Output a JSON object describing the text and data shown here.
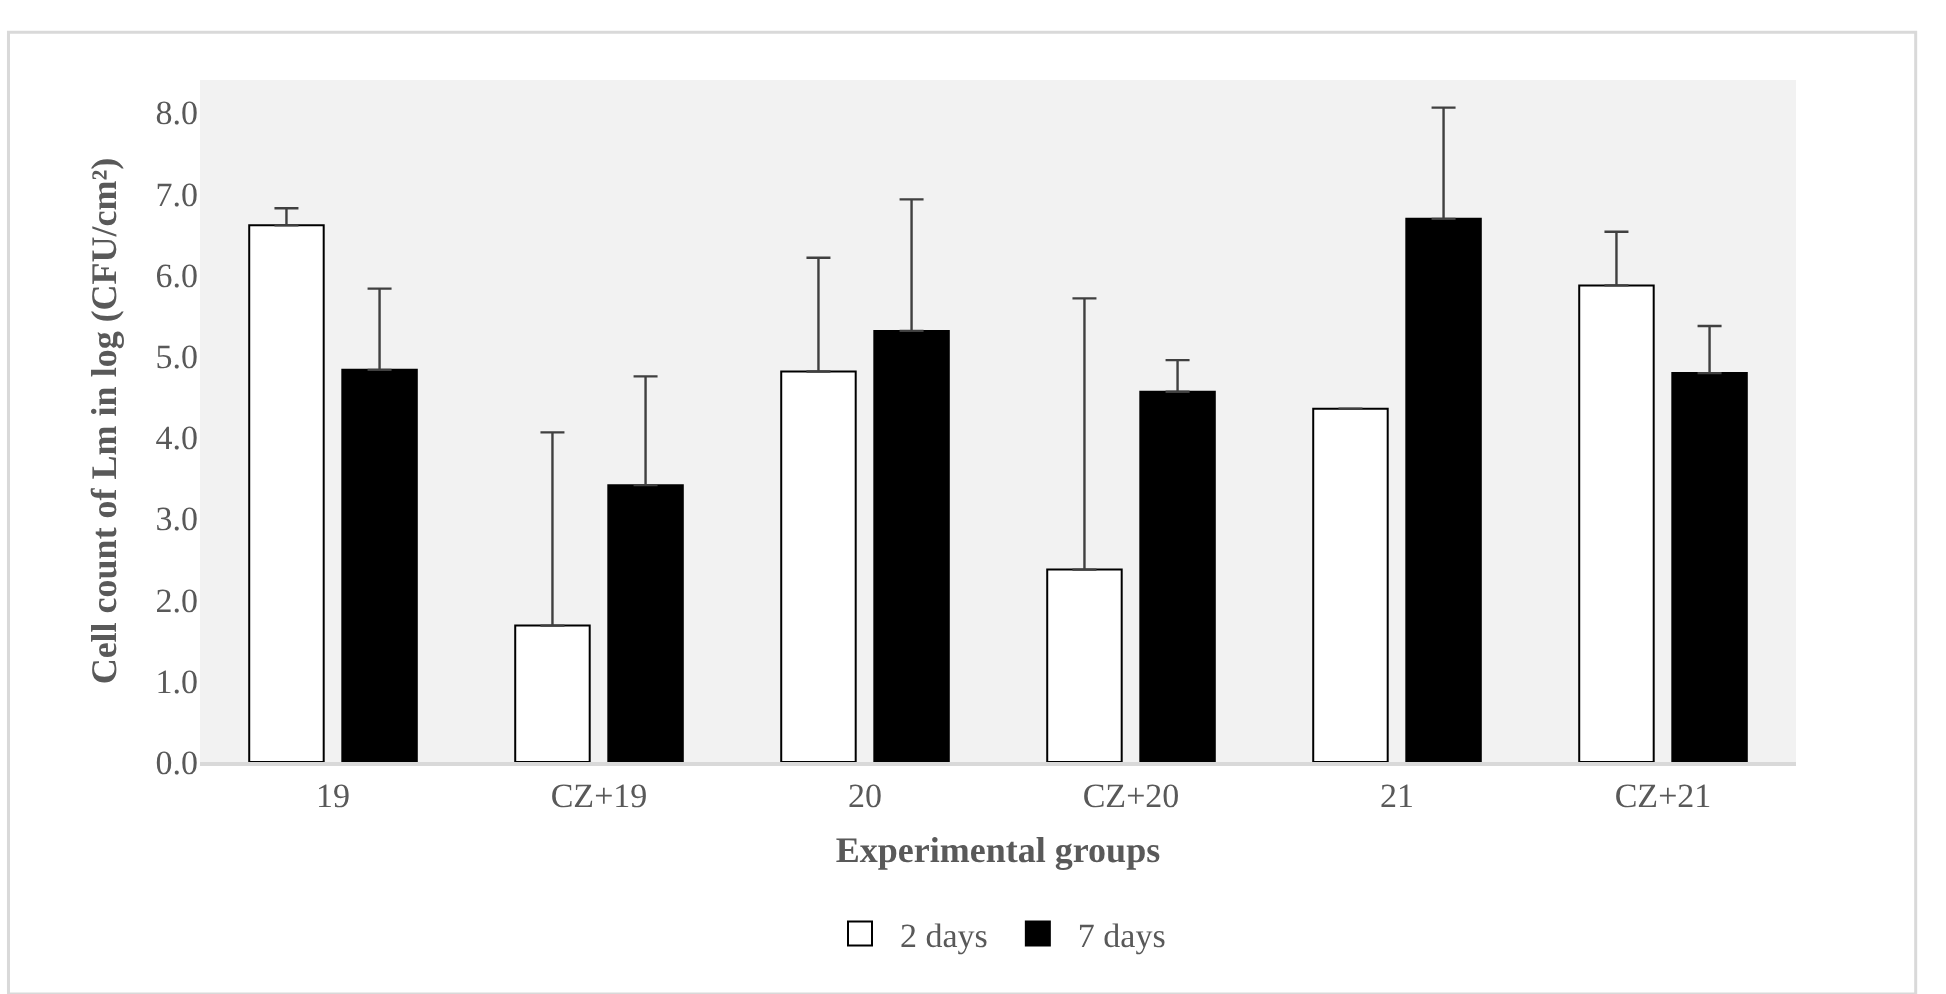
{
  "chart_data": {
    "type": "bar",
    "xlabel": "Experimental groups",
    "ylabel": "Cell count of Lm in log (CFU/cm²)",
    "categories": [
      "19",
      "CZ+19",
      "20",
      "CZ+20",
      "21",
      "CZ+21"
    ],
    "series": [
      {
        "name": "2 days",
        "color": "#ffffff",
        "values": [
          6.61,
          1.68,
          4.81,
          2.37,
          4.35,
          5.87
        ],
        "errors": [
          0.21,
          2.38,
          1.4,
          3.34,
          null,
          0.66
        ]
      },
      {
        "name": "7 days",
        "color": "#000000",
        "values": [
          4.83,
          3.41,
          5.31,
          4.56,
          6.69,
          4.79
        ],
        "errors": [
          1.0,
          1.34,
          1.62,
          0.39,
          1.37,
          0.58
        ]
      }
    ],
    "ylim": [
      0,
      8.4
    ],
    "yticks": [
      {
        "value": 0,
        "label": "0.0"
      },
      {
        "value": 1,
        "label": "1.0"
      },
      {
        "value": 2,
        "label": "2.0"
      },
      {
        "value": 3,
        "label": "3.0"
      },
      {
        "value": 4,
        "label": "4.0"
      },
      {
        "value": 5,
        "label": "5.0"
      },
      {
        "value": 6,
        "label": "6.0"
      },
      {
        "value": 7,
        "label": "7.0"
      },
      {
        "value": 8,
        "label": "8.0"
      }
    ],
    "grid": false,
    "legend": "bottom"
  }
}
